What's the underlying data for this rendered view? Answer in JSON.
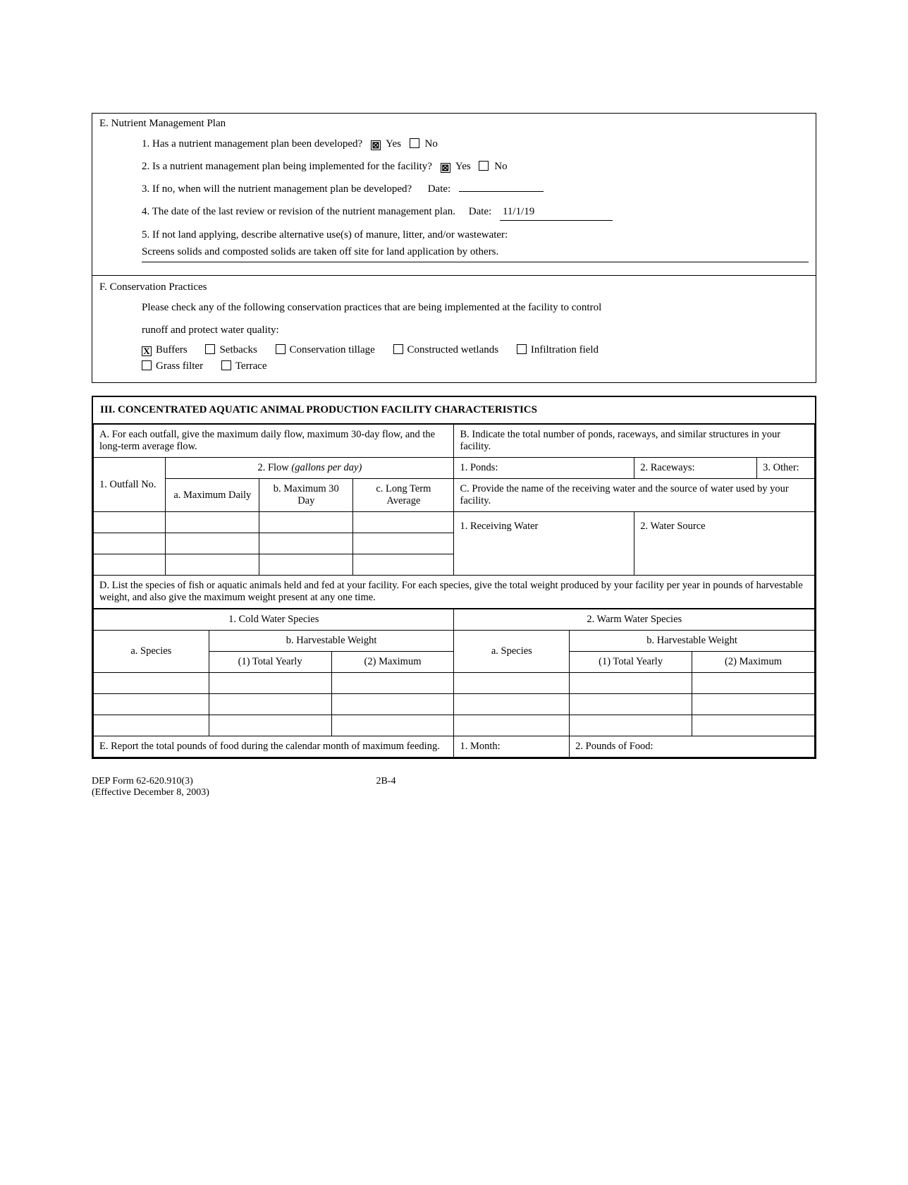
{
  "sectionE": {
    "title": "E. Nutrient Management Plan",
    "q1": "1. Has a nutrient management plan been developed?",
    "q1_yes": "Yes",
    "q1_no": "No",
    "q1_yes_checked": "⊠",
    "q1_no_checked": "",
    "q2": "2. Is a nutrient management plan being implemented for the facility?",
    "q2_yes": "Yes",
    "q2_no": "No",
    "q2_yes_checked": "⊠",
    "q2_no_checked": "",
    "q3": "3. If no, when will the nutrient management plan be developed?",
    "q3_date_label": "Date:",
    "q3_date_value": "",
    "q4": "4. The date of the last review or revision of the nutrient management plan.",
    "q4_date_label": "Date:",
    "q4_date_value": "11/1/19",
    "q5": "5. If not land applying, describe alternative use(s) of manure, litter, and/or wastewater:",
    "q5_answer": "Screens solids and composted solids are taken off site for land application by others."
  },
  "sectionF": {
    "title": "F. Conservation Practices",
    "intro1": "Please check any of the following conservation practices that are being implemented at the facility to control",
    "intro2": "runoff and protect water quality:",
    "opts": {
      "buffers": "Buffers",
      "buffers_chk": "X",
      "setbacks": "Setbacks",
      "setbacks_chk": "",
      "conservation_tillage": "Conservation tillage",
      "ct_chk": "",
      "constructed_wetlands": "Constructed wetlands",
      "cw_chk": "",
      "infiltration_field": "Infiltration field",
      "if_chk": "",
      "grass_filter": "Grass filter",
      "gf_chk": "",
      "terrace": "Terrace",
      "terrace_chk": ""
    }
  },
  "section3": {
    "title": "III. CONCENTRATED AQUATIC ANIMAL PRODUCTION FACILITY CHARACTERISTICS",
    "A": "A.  For each outfall, give the maximum daily flow, maximum 30-day flow, and the long-term average flow.",
    "B": "B.  Indicate the total number of ponds, raceways, and similar structures in your facility.",
    "outfall_label": "1. Outfall No.",
    "flow_header": "2. Flow (gallons per day)",
    "flow_a": "a. Maximum Daily",
    "flow_b": "b. Maximum 30 Day",
    "flow_c": "c. Long Term Average",
    "ponds": "1. Ponds:",
    "raceways": "2. Raceways:",
    "other": "3. Other:",
    "C": "C.  Provide the name of the receiving water and the source of water used by your facility.",
    "receiving": "1.   Receiving Water",
    "source": "2.   Water Source",
    "D": "D.  List the species of fish or aquatic animals held and fed at your facility. For each species, give the total weight produced by your facility per year in pounds of harvestable weight, and also give the maximum weight present at any one time.",
    "cold": "1. Cold Water Species",
    "warm": "2. Warm Water Species",
    "species": "a. Species",
    "harvest": "b. Harvestable Weight",
    "yearly": "(1) Total Yearly",
    "max": "(2) Maximum",
    "E": "E. Report the total pounds of food during the calendar month of maximum feeding.",
    "month": "1. Month:",
    "pounds": "2. Pounds of Food:"
  },
  "footer": {
    "form": "DEP Form 62-620.910(3)",
    "effective": "(Effective December 8, 2003)",
    "page": "2B-4"
  }
}
